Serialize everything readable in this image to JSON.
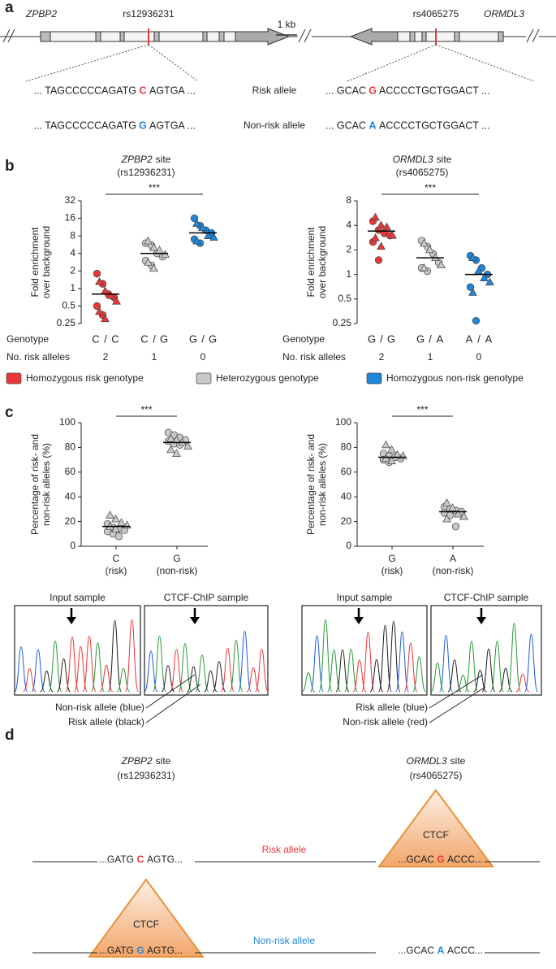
{
  "panel_labels": [
    "a",
    "b",
    "c",
    "d"
  ],
  "panel_a": {
    "left_gene": "ZPBP2",
    "left_snp": "rs12936231",
    "scale": "1 kb",
    "right_snp": "rs4065275",
    "right_gene": "ORMDL3",
    "rows": [
      {
        "left": [
          "... TAGCCCCCAGATG",
          "C",
          "AGTGA ..."
        ],
        "label": "Risk allele",
        "right": [
          "... GCAC",
          "G",
          "ACCCCTGCTGGACT ..."
        ]
      },
      {
        "left": [
          "... TAGCCCCCAGATG",
          "G",
          "AGTGA ..."
        ],
        "label": "Non-risk allele",
        "right": [
          "... GCAC",
          "A",
          "ACCCCTGCTGGACT ..."
        ]
      }
    ]
  },
  "legend": [
    {
      "label": "Homozygous risk genotype",
      "color": "#e8373b"
    },
    {
      "label": "Heterozygous genotype",
      "color": "#c8c8c8"
    },
    {
      "label": "Homozygous non-risk genotype",
      "color": "#1f86d9"
    }
  ],
  "traces": [
    {
      "titles": [
        "Input sample",
        "CTCF-ChIP sample"
      ],
      "notes": [
        "Non-risk allele (blue)",
        "Risk allele (black)"
      ]
    },
    {
      "titles": [
        "Input sample",
        "CTCF-ChIP sample"
      ],
      "notes": [
        "Risk allele (blue)",
        "Non-risk allele (red)"
      ]
    }
  ],
  "panel_d": {
    "sites": [
      {
        "gene": "ZPBP2",
        "title": "site",
        "snp": "(rs12936231)"
      },
      {
        "gene": "ORMDL3",
        "title": "site",
        "snp": "(rs4065275)"
      }
    ],
    "rows": [
      {
        "label": "Risk allele",
        "left": [
          "...GATG",
          "C",
          "AGTG..."
        ],
        "right": [
          "...GCAC",
          "G",
          "ACCC..."
        ],
        "ctcf": "CTCF"
      },
      {
        "label": "Non-risk allele",
        "left": [
          "...GATG",
          "G",
          "AGTG..."
        ],
        "right": [
          "...GCAC",
          "A",
          "ACCC..."
        ],
        "ctcf": "CTCF"
      }
    ]
  },
  "chart_data": [
    {
      "type": "dot",
      "gene": "ZPBP2",
      "title": "site",
      "snp": "(rs12936231)",
      "y_label": [
        "Fold enrichment",
        "over background"
      ],
      "log_scale": true,
      "ylim": [
        0.25,
        32
      ],
      "yticks": [
        0.25,
        0.5,
        1,
        2,
        4,
        8,
        16,
        32
      ],
      "significance": "***",
      "row_labels": [
        "Genotype",
        "No. risk alleles"
      ],
      "allele_colors": {
        "C": "#e8373b",
        "G": "#1f86d9"
      },
      "groups": [
        {
          "genotype": [
            "C",
            "/",
            "C"
          ],
          "risk_alleles": 2,
          "color": "#e8373b",
          "circles": [
            1.8,
            1.2,
            0.8,
            0.7,
            0.5,
            0.35
          ],
          "triangles": [
            1.3,
            0.9,
            0.75,
            0.6,
            0.4,
            0.3
          ],
          "median": 0.8
        },
        {
          "genotype": [
            "C",
            "/",
            "G"
          ],
          "risk_alleles": 1,
          "color": "#c8c8c8",
          "circles": [
            6,
            5.5,
            4,
            3.5,
            3,
            2.5
          ],
          "triangles": [
            6.5,
            5,
            4.5,
            3.8,
            2.8,
            2.2
          ],
          "median": 4
        },
        {
          "genotype": [
            "G",
            "/",
            "G"
          ],
          "risk_alleles": 0,
          "color": "#1f86d9",
          "circles": [
            16,
            12,
            10,
            9,
            7,
            6
          ],
          "triangles": [
            13,
            11,
            8,
            7.5,
            6.5
          ],
          "median": 9
        }
      ]
    },
    {
      "type": "dot",
      "gene": "ORMDL3",
      "title": "site",
      "snp": "(rs4065275)",
      "y_label": [
        "Fold enrichment",
        "over background"
      ],
      "log_scale": true,
      "ylim": [
        0.25,
        8
      ],
      "yticks": [
        0.25,
        0.5,
        1,
        2,
        4,
        8
      ],
      "significance": "***",
      "row_labels": [
        "Genotype",
        "No. risk alleles"
      ],
      "allele_colors": {
        "G": "#e8373b",
        "A": "#1f86d9"
      },
      "groups": [
        {
          "genotype": [
            "G",
            "/",
            "G"
          ],
          "risk_alleles": 2,
          "color": "#e8373b",
          "circles": [
            4.5,
            3.5,
            3.2,
            3,
            2.5,
            1.5
          ],
          "triangles": [
            5,
            4,
            3.8,
            3,
            2.8,
            2.2
          ],
          "median": 3.4
        },
        {
          "genotype": [
            "G",
            "/",
            "A"
          ],
          "risk_alleles": 1,
          "color": "#c8c8c8",
          "circles": [
            2.6,
            2.2,
            1.8,
            1.4,
            1.2,
            1.1
          ],
          "triangles": [
            2.4,
            2,
            1.6,
            1.3,
            1.2
          ],
          "median": 1.6
        },
        {
          "genotype": [
            "A",
            "/",
            "A"
          ],
          "risk_alleles": 0,
          "color": "#1f86d9",
          "circles": [
            1.7,
            1.5,
            1.2,
            1,
            0.7,
            0.27
          ],
          "triangles": [
            1.6,
            1.1,
            0.9,
            0.8,
            0.6
          ],
          "median": 1
        }
      ]
    },
    {
      "type": "dot",
      "y_label": [
        "Percentage of risk- and",
        "non-risk alleles (%)"
      ],
      "log_scale": false,
      "ylim": [
        0,
        100
      ],
      "yticks": [
        0,
        20,
        40,
        60,
        80,
        100
      ],
      "significance": "***",
      "allele_colors": {
        "C": "#e8373b",
        "G": "#1f86d9"
      },
      "groups": [
        {
          "label": "C",
          "sublabel": "(risk)",
          "color": "#c8c8c8",
          "circles": [
            18,
            15,
            14,
            13,
            12,
            10,
            8
          ],
          "triangles": [
            25,
            22,
            19,
            17,
            16,
            14
          ],
          "median": 16
        },
        {
          "label": "G",
          "sublabel": "(non-risk)",
          "color": "#c8c8c8",
          "circles": [
            92,
            90,
            88,
            86,
            85,
            83,
            82
          ],
          "triangles": [
            87,
            86,
            84,
            81,
            78,
            75
          ],
          "median": 84
        }
      ]
    },
    {
      "type": "dot",
      "y_label": [
        "Percentage of risk- and",
        "non-risk alleles (%)"
      ],
      "log_scale": false,
      "ylim": [
        0,
        100
      ],
      "yticks": [
        0,
        20,
        40,
        60,
        80,
        100
      ],
      "significance": "***",
      "allele_colors": {
        "G": "#e8373b",
        "A": "#1f86d9"
      },
      "groups": [
        {
          "label": "G",
          "sublabel": "(risk)",
          "color": "#c8c8c8",
          "circles": [
            75,
            73,
            72,
            71,
            70,
            68
          ],
          "triangles": [
            82,
            78,
            74,
            73,
            71,
            69
          ],
          "median": 72
        },
        {
          "label": "A",
          "sublabel": "(non-risk)",
          "color": "#c8c8c8",
          "circles": [
            32,
            30,
            29,
            28,
            27,
            25,
            16
          ],
          "triangles": [
            35,
            31,
            26,
            24,
            22
          ],
          "median": 28
        }
      ]
    }
  ]
}
